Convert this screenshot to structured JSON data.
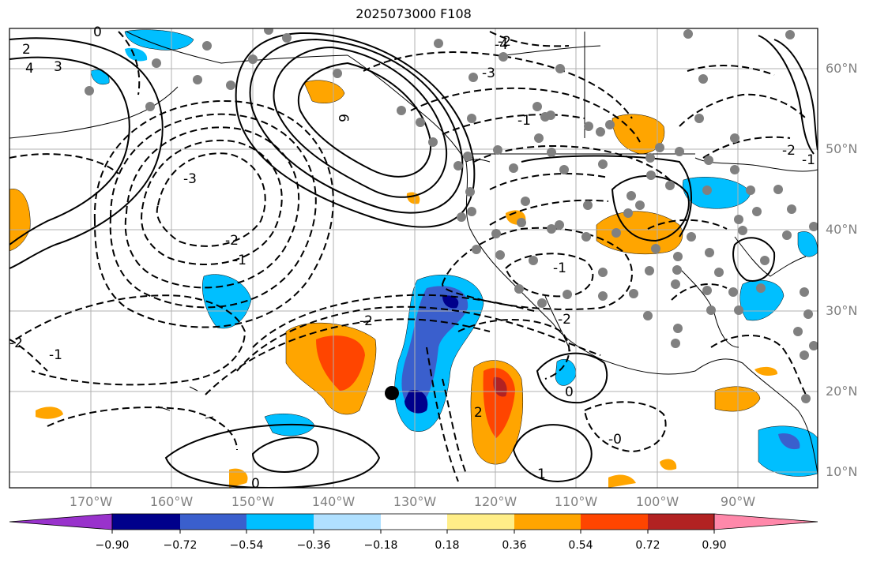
{
  "title": "2025073000 F108",
  "map": {
    "lon_labels": [
      "170°W",
      "160°W",
      "150°W",
      "140°W",
      "130°W",
      "120°W",
      "110°W",
      "100°W",
      "90°W"
    ],
    "lat_labels": [
      "60°N",
      "50°N",
      "40°N",
      "30°N",
      "20°N",
      "10°N"
    ],
    "contour_labels": [
      "0",
      "2",
      "4",
      "3",
      "6",
      "-3",
      "-2",
      "-1",
      "-2",
      "-2",
      "-1",
      "-4",
      "-3",
      "-2",
      "-1",
      "0",
      "-0",
      "1",
      "-1",
      "-2",
      "-2",
      "-1",
      "0",
      "2"
    ],
    "marker": {
      "lon": -133.1,
      "lat": 20.0
    },
    "grid": true
  },
  "colorbar": {
    "ticks": [
      "−0.90",
      "−0.72",
      "−0.54",
      "−0.36",
      "−0.18",
      "0.18",
      "0.36",
      "0.54",
      "0.72",
      "0.90"
    ],
    "colors": [
      "#9932cc",
      "#00008b",
      "#3a5fcd",
      "#00bfff",
      "#b0e0ff",
      "#ffffff",
      "#ffee88",
      "#ffa500",
      "#ff4500",
      "#b22222",
      "#ff88aa"
    ]
  }
}
